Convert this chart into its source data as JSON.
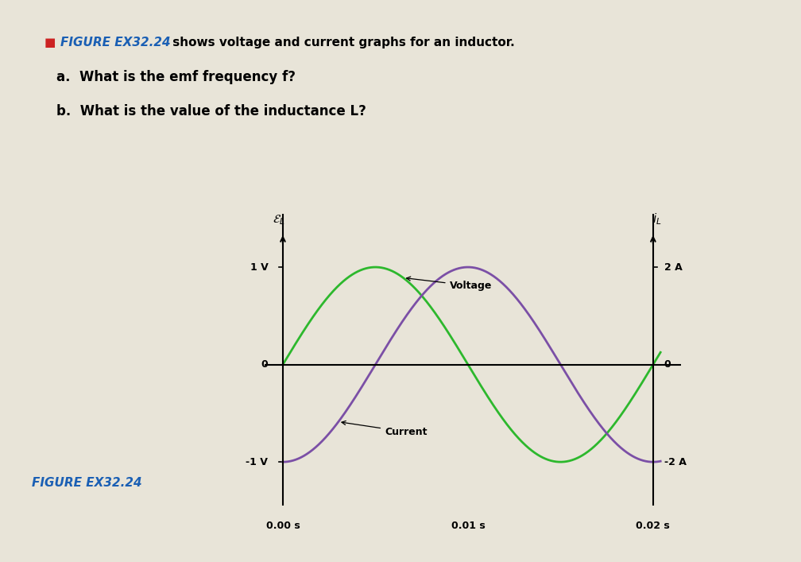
{
  "title_prefix": "FIGURE EX32.24",
  "title_prefix_color": "#1a5fb4",
  "title_text": " shows voltage and current graphs for an inductor.",
  "question_a": "a.  What is the emf frequency f?",
  "question_b": "b.  What is the value of the inductance L?",
  "figure_label": "FIGURE EX32.24",
  "figure_label_color": "#1a5fb4",
  "voltage_amplitude": 1.0,
  "current_amplitude": 2.0,
  "period": 0.02,
  "voltage_color": "#2db82d",
  "current_color": "#7b4fa6",
  "voltage_label": "Voltage",
  "current_label": "Current",
  "background_color": "#e8e4d8",
  "axes_background": "#e8e4d8"
}
